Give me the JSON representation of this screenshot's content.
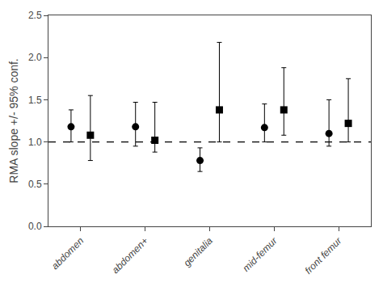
{
  "chart_data": {
    "type": "scatter",
    "categories": [
      "abdomen",
      "abdomen+",
      "genitalia",
      "mid-femur",
      "front femur"
    ],
    "series": [
      {
        "values": [
          1.18,
          1.18,
          0.78,
          1.17,
          1.1
        ],
        "lower": [
          1.0,
          0.95,
          0.65,
          1.0,
          0.95
        ],
        "upper": [
          1.38,
          1.47,
          0.93,
          1.45,
          1.5
        ],
        "color": "#000000",
        "marker": "circle"
      },
      {
        "values": [
          1.08,
          1.02,
          1.38,
          1.38,
          1.22
        ],
        "lower": [
          0.78,
          0.88,
          1.0,
          1.08,
          1.0
        ],
        "upper": [
          1.55,
          1.47,
          2.18,
          1.88,
          1.75
        ],
        "color": "#000000",
        "marker": "square"
      }
    ],
    "ylabel": "RMA slope +/- 95% conf.",
    "ylim": [
      0.0,
      2.5
    ],
    "yticks": [
      {
        "value": 0.0,
        "label": "0.0"
      },
      0.5,
      {
        "value": 1.0,
        "label": "1.0"
      },
      1.5,
      {
        "value": 2.0,
        "label": "2.0"
      },
      2.5
    ],
    "reference_lines": [
      {
        "y": 1.0,
        "color": "#000000",
        "line_style": "dashed"
      }
    ],
    "grid": false
  }
}
